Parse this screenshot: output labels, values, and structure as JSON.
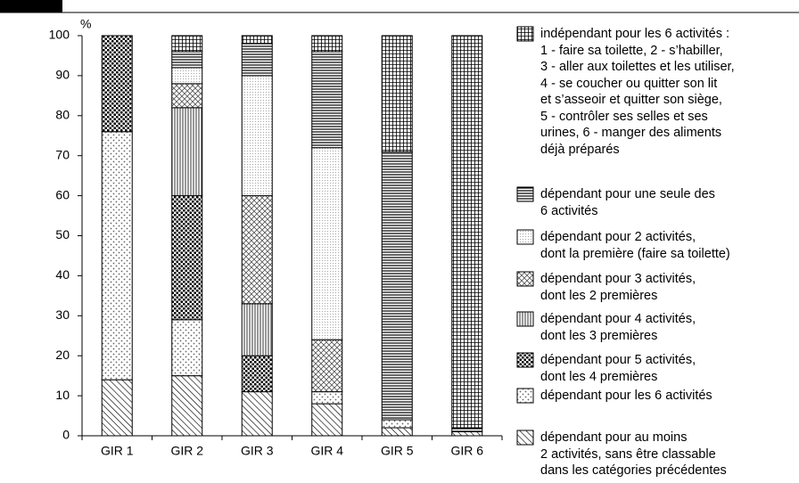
{
  "chart_data": {
    "type": "stacked_bar",
    "y_label": "%",
    "categories": [
      "GIR 1",
      "GIR 2",
      "GIR 3",
      "GIR 4",
      "GIR 5",
      "GIR 6"
    ],
    "ylim": [
      0,
      100
    ],
    "yticks": [
      0,
      10,
      20,
      30,
      40,
      50,
      60,
      70,
      80,
      90,
      100
    ],
    "series": [
      {
        "name": "dépendant pour au moins\n2 activités, sans être classable\ndans les catégories précédentes",
        "pattern": "diag",
        "values": [
          14,
          15,
          11,
          8,
          2,
          1
        ]
      },
      {
        "name": "dépendant pour les 6 activités",
        "pattern": "lightdots",
        "values": [
          62,
          14,
          0,
          3,
          2,
          0
        ]
      },
      {
        "name": "dépendant pour 5 activités,\ndont les 4 premières",
        "pattern": "darkdots",
        "values": [
          24,
          31,
          9,
          0,
          0,
          0
        ]
      },
      {
        "name": "dépendant pour 4 activités,\ndont les 3 premières",
        "pattern": "vert",
        "values": [
          0,
          22,
          13,
          0,
          0,
          0
        ]
      },
      {
        "name": "dépendant pour 3 activités,\ndont les 2 premières",
        "pattern": "cross",
        "values": [
          0,
          6,
          27,
          13,
          0,
          0
        ]
      },
      {
        "name": "dépendant pour 2 activités,\ndont la première (faire sa toilette)",
        "pattern": "finedots",
        "values": [
          0,
          4,
          30,
          48,
          0,
          0
        ]
      },
      {
        "name": "dépendant pour une seule des\n6 activités",
        "pattern": "horiz",
        "values": [
          0,
          4,
          8,
          24,
          67,
          1
        ]
      },
      {
        "name": "indépendant pour les 6 activités :\n1 - faire sa toilette, 2 - s’habiller,\n3 - aller aux toilettes et les utiliser,\n4 - se coucher ou quitter son lit\net s’asseoir et quitter son siège,\n5 - contrôler ses selles et ses\nurines, 6 - manger des aliments\ndéjà préparés",
        "pattern": "grid",
        "values": [
          0,
          4,
          2,
          4,
          29,
          98
        ]
      }
    ]
  }
}
